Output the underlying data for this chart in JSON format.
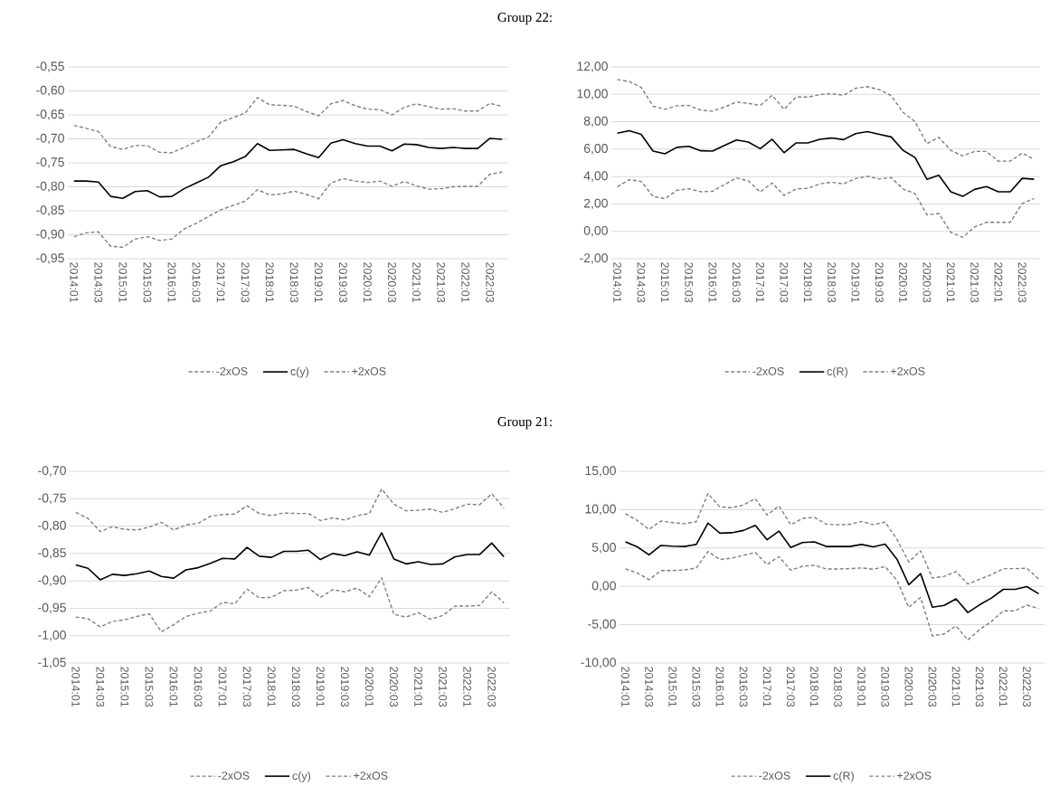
{
  "chart_data": [
    {
      "type": "line",
      "title": "Group 22:",
      "categories": [
        "2014:01",
        null,
        "2014:03",
        null,
        "2015:01",
        null,
        "2015:03",
        null,
        "2016:01",
        null,
        "2016:03",
        null,
        "2017:01",
        null,
        "2017:03",
        null,
        "2018:01",
        null,
        "2018:03",
        null,
        "2019:01",
        null,
        "2019:03",
        null,
        "2020:01",
        null,
        "2020:03",
        null,
        "2021:01",
        null,
        "2021:03",
        null,
        "2022:01",
        null,
        "2022:03",
        null
      ],
      "series": [
        {
          "name": "-2xOS",
          "color": "#7f7f7f",
          "line_style": "dashed",
          "values": [
            -0.904,
            -0.896,
            -0.894,
            -0.924,
            -0.926,
            -0.909,
            -0.904,
            -0.912,
            -0.909,
            -0.888,
            -0.876,
            -0.862,
            -0.848,
            -0.839,
            -0.83,
            -0.806,
            -0.817,
            -0.815,
            -0.809,
            -0.816,
            -0.825,
            -0.792,
            -0.783,
            -0.788,
            -0.791,
            -0.788,
            -0.799,
            -0.789,
            -0.798,
            -0.805,
            -0.804,
            -0.8,
            -0.799,
            -0.799,
            -0.774,
            -0.769
          ]
        },
        {
          "name": "c(y)",
          "color": "#000000",
          "line_style": "solid",
          "values": [
            -0.788,
            -0.788,
            -0.79,
            -0.82,
            -0.824,
            -0.81,
            -0.808,
            -0.821,
            -0.82,
            -0.804,
            -0.792,
            -0.78,
            -0.756,
            -0.748,
            -0.737,
            -0.71,
            -0.724,
            -0.723,
            -0.722,
            -0.731,
            -0.739,
            -0.709,
            -0.702,
            -0.71,
            -0.715,
            -0.715,
            -0.725,
            -0.711,
            -0.712,
            -0.718,
            -0.72,
            -0.718,
            -0.72,
            -0.72,
            -0.699,
            -0.701
          ]
        },
        {
          "name": "+2xOS",
          "color": "#7f7f7f",
          "line_style": "dashed",
          "values": [
            -0.672,
            -0.678,
            -0.685,
            -0.716,
            -0.722,
            -0.714,
            -0.714,
            -0.728,
            -0.729,
            -0.718,
            -0.706,
            -0.696,
            -0.665,
            -0.656,
            -0.646,
            -0.614,
            -0.629,
            -0.63,
            -0.632,
            -0.643,
            -0.652,
            -0.627,
            -0.62,
            -0.631,
            -0.638,
            -0.639,
            -0.65,
            -0.634,
            -0.627,
            -0.633,
            -0.638,
            -0.637,
            -0.642,
            -0.642,
            -0.626,
            -0.632
          ]
        }
      ],
      "ylim": [
        -0.95,
        -0.55
      ],
      "yticks": [
        {
          "value": -0.95,
          "label": "-0,95"
        },
        {
          "value": -0.9,
          "label": "-0,90"
        },
        {
          "value": -0.85,
          "label": "-0,85"
        },
        {
          "value": -0.8,
          "label": "-0,80"
        },
        {
          "value": -0.75,
          "label": "-0,75"
        },
        {
          "value": -0.7,
          "label": "-0,70"
        },
        {
          "value": -0.65,
          "label": "-0,65"
        },
        {
          "value": -0.6,
          "label": "-0,60"
        },
        {
          "value": -0.55,
          "label": "-0,55"
        }
      ],
      "grid": "y",
      "legend": "bottom"
    },
    {
      "type": "line",
      "categories": [
        "2014:01",
        null,
        "2014:03",
        null,
        "2015:01",
        null,
        "2015:03",
        null,
        "2016:01",
        null,
        "2016:03",
        null,
        "2017:01",
        null,
        "2017:03",
        null,
        "2018:01",
        null,
        "2018:03",
        null,
        "2019:01",
        null,
        "2019:03",
        null,
        "2020:01",
        null,
        "2020:03",
        null,
        "2021:01",
        null,
        "2021:03",
        null,
        "2022:01",
        null,
        "2022:03",
        null
      ],
      "series": [
        {
          "name": "-2xOS",
          "color": "#7f7f7f",
          "line_style": "dashed",
          "values": [
            3.26,
            3.77,
            3.65,
            2.55,
            2.38,
            2.99,
            3.11,
            2.89,
            2.92,
            3.41,
            3.9,
            3.68,
            2.87,
            3.53,
            2.62,
            3.09,
            3.14,
            3.46,
            3.58,
            3.46,
            3.85,
            4.02,
            3.82,
            3.92,
            3.09,
            2.75,
            1.2,
            1.3,
            -0.07,
            -0.44,
            0.32,
            0.66,
            0.66,
            0.66,
            2.03,
            2.4
          ]
        },
        {
          "name": "c(R)",
          "color": "#000000",
          "line_style": "solid",
          "values": [
            7.16,
            7.35,
            7.08,
            5.86,
            5.66,
            6.13,
            6.2,
            5.88,
            5.86,
            6.27,
            6.67,
            6.52,
            6.03,
            6.72,
            5.74,
            6.45,
            6.45,
            6.72,
            6.81,
            6.69,
            7.13,
            7.28,
            7.08,
            6.89,
            5.91,
            5.39,
            3.8,
            4.09,
            2.89,
            2.55,
            3.06,
            3.26,
            2.89,
            2.89,
            3.87,
            3.8
          ]
        },
        {
          "name": "+2xOS",
          "color": "#7f7f7f",
          "line_style": "dashed",
          "values": [
            11.08,
            10.93,
            10.51,
            9.14,
            8.9,
            9.17,
            9.19,
            8.85,
            8.77,
            9.07,
            9.44,
            9.34,
            9.19,
            9.93,
            8.9,
            9.8,
            9.8,
            9.98,
            10.05,
            9.93,
            10.44,
            10.56,
            10.34,
            9.9,
            8.68,
            8.01,
            6.4,
            6.86,
            5.91,
            5.51,
            5.83,
            5.83,
            5.12,
            5.12,
            5.71,
            5.25
          ]
        }
      ],
      "ylim": [
        -2,
        12
      ],
      "yticks": [
        {
          "value": -2,
          "label": "-2,00"
        },
        {
          "value": 0,
          "label": "0,00"
        },
        {
          "value": 2,
          "label": "2,00"
        },
        {
          "value": 4,
          "label": "4,00"
        },
        {
          "value": 6,
          "label": "6,00"
        },
        {
          "value": 8,
          "label": "8,00"
        },
        {
          "value": 10,
          "label": "10,00"
        },
        {
          "value": 12,
          "label": "12,00"
        }
      ],
      "grid": "y",
      "legend": "bottom"
    },
    {
      "type": "line",
      "title": "Group 21:",
      "categories": [
        "2014:01",
        null,
        "2014:03",
        null,
        "2015:01",
        null,
        "2015:03",
        null,
        "2016:01",
        null,
        "2016:03",
        null,
        "2017:01",
        null,
        "2017:03",
        null,
        "2018:01",
        null,
        "2018:03",
        null,
        "2019:01",
        null,
        "2019:03",
        null,
        "2020:01",
        null,
        "2020:03",
        null,
        "2021:01",
        null,
        "2021:03",
        null,
        "2022:01",
        null,
        "2022:03",
        null
      ],
      "series": [
        {
          "name": "-2xOS",
          "color": "#7f7f7f",
          "line_style": "dashed",
          "values": [
            -0.966,
            -0.969,
            -0.984,
            -0.974,
            -0.971,
            -0.965,
            -0.96,
            -0.993,
            -0.98,
            -0.965,
            -0.959,
            -0.955,
            -0.939,
            -0.942,
            -0.915,
            -0.931,
            -0.93,
            -0.918,
            -0.917,
            -0.912,
            -0.93,
            -0.916,
            -0.92,
            -0.913,
            -0.929,
            -0.894,
            -0.961,
            -0.966,
            -0.958,
            -0.97,
            -0.963,
            -0.946,
            -0.946,
            -0.945,
            -0.92,
            -0.94
          ]
        },
        {
          "name": "c(y)",
          "color": "#000000",
          "line_style": "solid",
          "values": [
            -0.871,
            -0.877,
            -0.898,
            -0.888,
            -0.89,
            -0.887,
            -0.882,
            -0.892,
            -0.895,
            -0.88,
            -0.876,
            -0.868,
            -0.859,
            -0.86,
            -0.839,
            -0.855,
            -0.857,
            -0.846,
            -0.846,
            -0.844,
            -0.861,
            -0.85,
            -0.854,
            -0.847,
            -0.853,
            -0.812,
            -0.86,
            -0.869,
            -0.865,
            -0.87,
            -0.869,
            -0.856,
            -0.852,
            -0.852,
            -0.831,
            -0.856
          ]
        },
        {
          "name": "+2xOS",
          "color": "#7f7f7f",
          "line_style": "dashed",
          "values": [
            -0.775,
            -0.786,
            -0.81,
            -0.801,
            -0.806,
            -0.807,
            -0.802,
            -0.793,
            -0.807,
            -0.798,
            -0.795,
            -0.782,
            -0.779,
            -0.778,
            -0.763,
            -0.777,
            -0.781,
            -0.776,
            -0.777,
            -0.777,
            -0.79,
            -0.785,
            -0.789,
            -0.781,
            -0.777,
            -0.732,
            -0.76,
            -0.772,
            -0.771,
            -0.769,
            -0.775,
            -0.768,
            -0.76,
            -0.761,
            -0.741,
            -0.767
          ]
        }
      ],
      "ylim": [
        -1.05,
        -0.7
      ],
      "yticks": [
        {
          "value": -1.05,
          "label": "-1,05"
        },
        {
          "value": -1.0,
          "label": "-1,00"
        },
        {
          "value": -0.95,
          "label": "-0,95"
        },
        {
          "value": -0.9,
          "label": "-0,90"
        },
        {
          "value": -0.85,
          "label": "-0,85"
        },
        {
          "value": -0.8,
          "label": "-0,80"
        },
        {
          "value": -0.75,
          "label": "-0,75"
        },
        {
          "value": -0.7,
          "label": "-0,70"
        }
      ],
      "grid": "y",
      "legend": "bottom"
    },
    {
      "type": "line",
      "categories": [
        "2014:01",
        null,
        "2014:03",
        null,
        "2015:01",
        null,
        "2015:03",
        null,
        "2016:01",
        null,
        "2016:03",
        null,
        "2017:01",
        null,
        "2017:03",
        null,
        "2018:01",
        null,
        "2018:03",
        null,
        "2019:01",
        null,
        "2019:03",
        null,
        "2020:01",
        null,
        "2020:03",
        null,
        "2021:01",
        null,
        "2021:03",
        null,
        "2022:01",
        null,
        "2022:03",
        null
      ],
      "series": [
        {
          "name": "-2xOS",
          "color": "#7f7f7f",
          "line_style": "dashed",
          "values": [
            2.27,
            1.75,
            0.87,
            2.05,
            2.05,
            2.14,
            2.4,
            4.54,
            3.49,
            3.67,
            4.06,
            4.41,
            2.84,
            3.89,
            2.1,
            2.62,
            2.75,
            2.27,
            2.27,
            2.31,
            2.4,
            2.23,
            2.58,
            0.79,
            -2.75,
            -1.44,
            -6.46,
            -6.2,
            -5.15,
            -6.99,
            -5.63,
            -4.59,
            -3.19,
            -3.19,
            -2.45,
            -2.88
          ]
        },
        {
          "name": "c(R)",
          "color": "#000000",
          "line_style": "solid",
          "values": [
            5.81,
            5.15,
            4.1,
            5.33,
            5.24,
            5.2,
            5.46,
            8.25,
            6.94,
            6.99,
            7.29,
            7.95,
            6.07,
            7.21,
            5.07,
            5.72,
            5.81,
            5.2,
            5.2,
            5.2,
            5.46,
            5.15,
            5.5,
            3.54,
            0.22,
            1.66,
            -2.71,
            -2.49,
            -1.62,
            -3.41,
            -2.4,
            -1.53,
            -0.39,
            -0.39,
            -0.04,
            -0.96
          ]
        },
        {
          "name": "+2xOS",
          "color": "#7f7f7f",
          "line_style": "dashed",
          "values": [
            9.48,
            8.6,
            7.42,
            8.52,
            8.3,
            8.17,
            8.43,
            12.1,
            10.35,
            10.26,
            10.61,
            11.44,
            9.3,
            10.48,
            8.03,
            8.86,
            9.0,
            8.12,
            8.03,
            8.08,
            8.47,
            8.03,
            8.38,
            6.11,
            3.19,
            4.63,
            1.09,
            1.31,
            1.92,
            0.31,
            0.92,
            1.53,
            2.31,
            2.31,
            2.36,
            0.96
          ]
        }
      ],
      "ylim": [
        -10,
        15
      ],
      "yticks": [
        {
          "value": -10,
          "label": "-10,00"
        },
        {
          "value": -5,
          "label": "-5,00"
        },
        {
          "value": 0,
          "label": "0,00"
        },
        {
          "value": 5,
          "label": "5,00"
        },
        {
          "value": 10,
          "label": "10,00"
        },
        {
          "value": 15,
          "label": "15,00"
        }
      ],
      "grid": "y",
      "legend": "bottom"
    }
  ]
}
